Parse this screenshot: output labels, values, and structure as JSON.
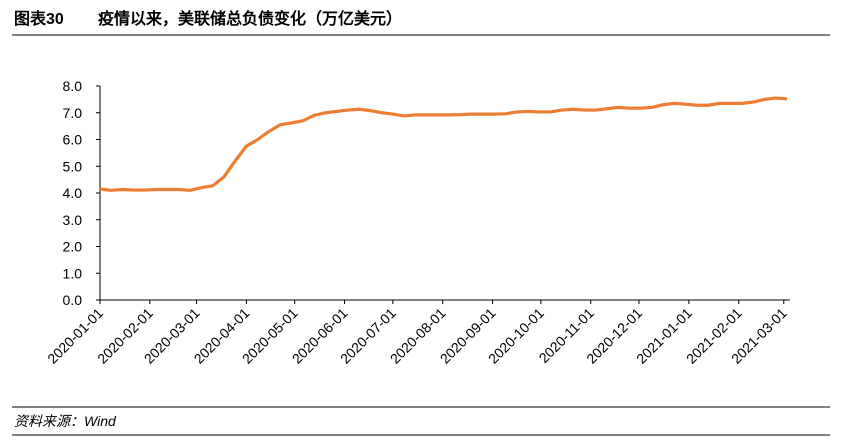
{
  "header": {
    "figure_number": "图表30",
    "title": "疫情以来，美联储总负债变化（万亿美元）"
  },
  "chart_data": {
    "type": "line",
    "x": [
      "2020-01-01",
      "2020-01-08",
      "2020-01-15",
      "2020-01-22",
      "2020-01-29",
      "2020-02-05",
      "2020-02-12",
      "2020-02-19",
      "2020-02-26",
      "2020-03-04",
      "2020-03-11",
      "2020-03-18",
      "2020-03-25",
      "2020-04-01",
      "2020-04-08",
      "2020-04-15",
      "2020-04-22",
      "2020-04-29",
      "2020-05-06",
      "2020-05-13",
      "2020-05-20",
      "2020-05-27",
      "2020-06-03",
      "2020-06-10",
      "2020-06-17",
      "2020-06-24",
      "2020-07-01",
      "2020-07-08",
      "2020-07-15",
      "2020-07-22",
      "2020-07-29",
      "2020-08-05",
      "2020-08-12",
      "2020-08-19",
      "2020-08-26",
      "2020-09-02",
      "2020-09-09",
      "2020-09-16",
      "2020-09-23",
      "2020-09-30",
      "2020-10-07",
      "2020-10-14",
      "2020-10-21",
      "2020-10-28",
      "2020-11-04",
      "2020-11-11",
      "2020-11-18",
      "2020-11-25",
      "2020-12-02",
      "2020-12-09",
      "2020-12-16",
      "2020-12-23",
      "2020-12-30",
      "2021-01-06",
      "2021-01-13",
      "2021-01-20",
      "2021-01-27",
      "2021-02-03",
      "2021-02-10",
      "2021-02-17",
      "2021-02-24",
      "2021-03-03"
    ],
    "series": [
      {
        "color": "#ED7D31",
        "values": [
          4.15,
          4.1,
          4.13,
          4.11,
          4.11,
          4.13,
          4.13,
          4.13,
          4.1,
          4.2,
          4.27,
          4.6,
          5.2,
          5.75,
          6.0,
          6.3,
          6.55,
          6.62,
          6.7,
          6.9,
          7.0,
          7.05,
          7.1,
          7.13,
          7.08,
          7.0,
          6.95,
          6.88,
          6.92,
          6.92,
          6.92,
          6.92,
          6.93,
          6.95,
          6.95,
          6.95,
          6.96,
          7.03,
          7.05,
          7.03,
          7.03,
          7.1,
          7.13,
          7.1,
          7.1,
          7.15,
          7.2,
          7.17,
          7.17,
          7.2,
          7.3,
          7.35,
          7.32,
          7.28,
          7.28,
          7.35,
          7.35,
          7.35,
          7.4,
          7.5,
          7.55,
          7.52
        ]
      }
    ],
    "xlim": [
      "2020-01-01",
      "2021-03-03"
    ],
    "xticks": [
      "2020-01-01",
      "2020-02-01",
      "2020-03-01",
      "2020-04-01",
      "2020-05-01",
      "2020-06-01",
      "2020-07-01",
      "2020-08-01",
      "2020-09-01",
      "2020-10-01",
      "2020-11-01",
      "2020-12-01",
      "2021-01-01",
      "2021-02-01",
      "2021-03-01"
    ],
    "ylim": [
      0,
      8
    ],
    "yticks": [
      {
        "value": 0,
        "label": "0.0"
      },
      {
        "value": 1,
        "label": "1.0"
      },
      {
        "value": 2,
        "label": "2.0"
      },
      {
        "value": 3,
        "label": "3.0"
      },
      {
        "value": 4,
        "label": "4.0"
      },
      {
        "value": 5,
        "label": "5.0"
      },
      {
        "value": 6,
        "label": "6.0"
      },
      {
        "value": 7,
        "label": "7.0"
      },
      {
        "value": 8,
        "label": "8.0"
      }
    ]
  },
  "footer": {
    "source": "资料来源：Wind"
  }
}
